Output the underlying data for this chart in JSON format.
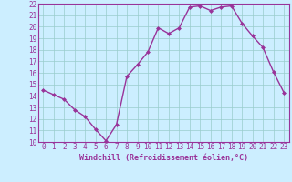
{
  "x": [
    0,
    1,
    2,
    3,
    4,
    5,
    6,
    7,
    8,
    9,
    10,
    11,
    12,
    13,
    14,
    15,
    16,
    17,
    18,
    19,
    20,
    21,
    22,
    23
  ],
  "y": [
    14.5,
    14.1,
    13.7,
    12.8,
    12.2,
    11.1,
    10.1,
    11.5,
    15.7,
    16.7,
    17.8,
    19.9,
    19.4,
    19.9,
    21.7,
    21.8,
    21.4,
    21.7,
    21.8,
    20.3,
    19.2,
    18.2,
    16.1,
    14.3
  ],
  "line_color": "#993399",
  "marker": "D",
  "marker_size": 2.0,
  "bg_color": "#cceeff",
  "grid_color": "#99cccc",
  "xlabel": "Windchill (Refroidissement éolien,°C)",
  "xlabel_color": "#993399",
  "tick_color": "#993399",
  "ylim": [
    10,
    22
  ],
  "xlim": [
    -0.5,
    23.5
  ],
  "yticks": [
    10,
    11,
    12,
    13,
    14,
    15,
    16,
    17,
    18,
    19,
    20,
    21,
    22
  ],
  "xticks": [
    0,
    1,
    2,
    3,
    4,
    5,
    6,
    7,
    8,
    9,
    10,
    11,
    12,
    13,
    14,
    15,
    16,
    17,
    18,
    19,
    20,
    21,
    22,
    23
  ],
  "line_width": 1.0,
  "axis_color": "#993399",
  "tick_fontsize": 5.5,
  "xlabel_fontsize": 6.0
}
